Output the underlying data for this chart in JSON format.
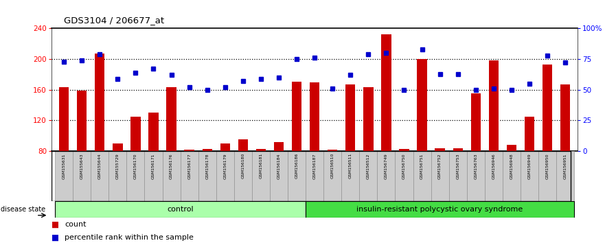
{
  "title": "GDS3104 / 206677_at",
  "samples": [
    "GSM155631",
    "GSM155643",
    "GSM155644",
    "GSM155729",
    "GSM156170",
    "GSM156171",
    "GSM156176",
    "GSM156177",
    "GSM156178",
    "GSM156179",
    "GSM156180",
    "GSM156181",
    "GSM156184",
    "GSM156186",
    "GSM156187",
    "GSM156510",
    "GSM156511",
    "GSM156512",
    "GSM156749",
    "GSM156750",
    "GSM156751",
    "GSM156752",
    "GSM156753",
    "GSM156763",
    "GSM156946",
    "GSM156948",
    "GSM156949",
    "GSM156950",
    "GSM156951"
  ],
  "counts": [
    163,
    159,
    207,
    90,
    125,
    130,
    163,
    82,
    83,
    90,
    95,
    83,
    92,
    171,
    170,
    82,
    167,
    163,
    232,
    83,
    200,
    84,
    84,
    155,
    198,
    88,
    125,
    193,
    167
  ],
  "percentiles": [
    73,
    74,
    79,
    59,
    64,
    67,
    62,
    52,
    50,
    52,
    57,
    59,
    60,
    75,
    76,
    51,
    62,
    79,
    80,
    50,
    83,
    63,
    63,
    50,
    51,
    50,
    55,
    78,
    72
  ],
  "control_count": 14,
  "disease_label": "insulin-resistant polycystic ovary syndrome",
  "control_label": "control",
  "disease_state_label": "disease state",
  "ylim_left": [
    80,
    240
  ],
  "ylim_right": [
    0,
    100
  ],
  "yticks_left": [
    80,
    120,
    160,
    200,
    240
  ],
  "yticks_right": [
    0,
    25,
    50,
    75,
    100
  ],
  "bar_color": "#cc0000",
  "dot_color": "#0000cc",
  "control_bg": "#aaffaa",
  "disease_bg": "#44dd44",
  "legend_count_label": "count",
  "legend_pct_label": "percentile rank within the sample"
}
